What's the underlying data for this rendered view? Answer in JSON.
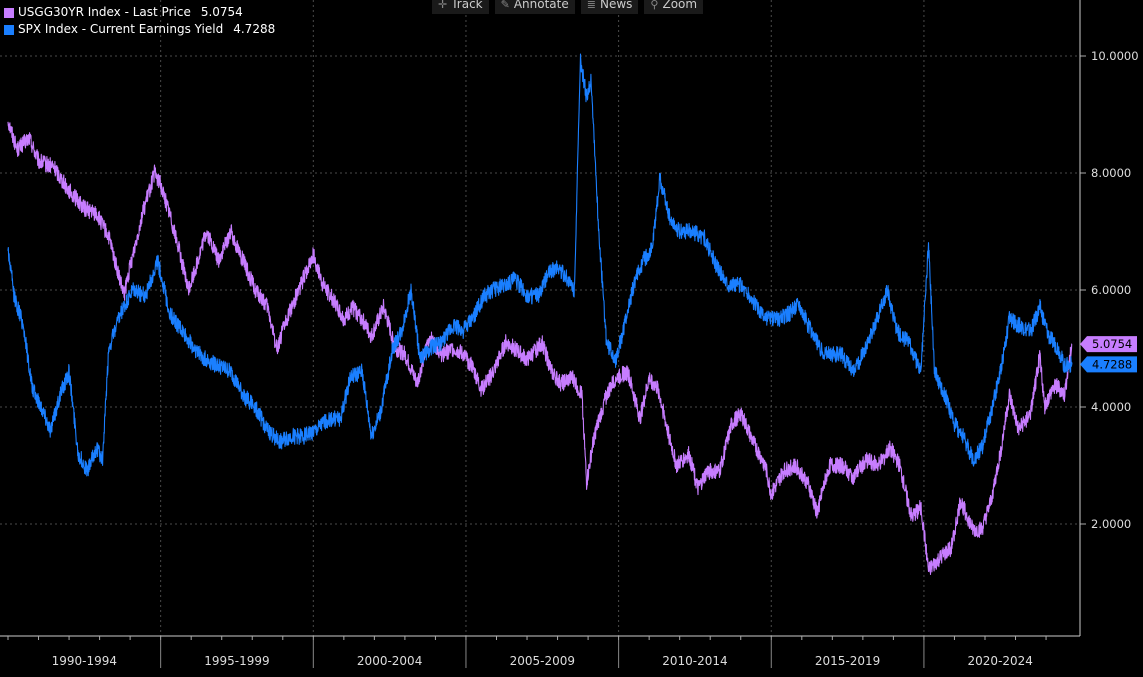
{
  "toolbar": {
    "items": [
      {
        "label": "Track",
        "icon": "crosshair-icon"
      },
      {
        "label": "Annotate",
        "icon": "pencil-icon"
      },
      {
        "label": "News",
        "icon": "news-icon"
      },
      {
        "label": "Zoom",
        "icon": "magnifier-icon"
      }
    ]
  },
  "legend": [
    {
      "label": "USGG30YR Index - Last Price",
      "value": "5.0754",
      "color": "#c77dff"
    },
    {
      "label": "SPX Index - Current Earnings Yield",
      "value": "4.7288",
      "color": "#1a7fff"
    }
  ],
  "chart_data": {
    "type": "line",
    "title": "",
    "xlabel": "",
    "ylabel": "",
    "ylim": [
      0,
      10.2
    ],
    "xlim": [
      1990.0,
      2024.85
    ],
    "y_ticks": [
      "2.0000",
      "4.0000",
      "6.0000",
      "8.0000",
      "10.0000"
    ],
    "x_categories": [
      "1990-1994",
      "1995-1999",
      "2000-2004",
      "2005-2009",
      "2010-2014",
      "2015-2019",
      "2020-2024"
    ],
    "grid": true,
    "legend_position": "top-left",
    "series": [
      {
        "name": "USGG30YR Index - Last Price",
        "color": "#c77dff",
        "last_value": "5.0754",
        "points": [
          [
            1990.0,
            8.9
          ],
          [
            1990.3,
            8.4
          ],
          [
            1990.7,
            8.6
          ],
          [
            1991.0,
            8.2
          ],
          [
            1991.5,
            8.1
          ],
          [
            1992.0,
            7.7
          ],
          [
            1992.5,
            7.4
          ],
          [
            1992.9,
            7.3
          ],
          [
            1993.3,
            6.9
          ],
          [
            1993.8,
            5.9
          ],
          [
            1994.0,
            6.4
          ],
          [
            1994.4,
            7.3
          ],
          [
            1994.8,
            8.0
          ],
          [
            1995.0,
            7.8
          ],
          [
            1995.3,
            7.3
          ],
          [
            1995.6,
            6.7
          ],
          [
            1995.9,
            6.0
          ],
          [
            1996.1,
            6.3
          ],
          [
            1996.5,
            7.0
          ],
          [
            1996.9,
            6.5
          ],
          [
            1997.3,
            7.0
          ],
          [
            1997.7,
            6.5
          ],
          [
            1998.1,
            6.0
          ],
          [
            1998.5,
            5.7
          ],
          [
            1998.8,
            5.0
          ],
          [
            1999.2,
            5.6
          ],
          [
            1999.6,
            6.1
          ],
          [
            2000.0,
            6.6
          ],
          [
            2000.3,
            6.1
          ],
          [
            2000.7,
            5.8
          ],
          [
            2001.0,
            5.5
          ],
          [
            2001.3,
            5.7
          ],
          [
            2001.6,
            5.5
          ],
          [
            2001.9,
            5.2
          ],
          [
            2002.3,
            5.7
          ],
          [
            2002.7,
            5.0
          ],
          [
            2003.0,
            4.9
          ],
          [
            2003.4,
            4.4
          ],
          [
            2003.8,
            5.2
          ],
          [
            2004.2,
            4.9
          ],
          [
            2004.6,
            5.0
          ],
          [
            2004.9,
            4.9
          ],
          [
            2005.2,
            4.7
          ],
          [
            2005.5,
            4.3
          ],
          [
            2005.9,
            4.6
          ],
          [
            2006.3,
            5.1
          ],
          [
            2006.6,
            5.0
          ],
          [
            2007.0,
            4.8
          ],
          [
            2007.5,
            5.1
          ],
          [
            2007.8,
            4.6
          ],
          [
            2008.1,
            4.4
          ],
          [
            2008.5,
            4.5
          ],
          [
            2008.8,
            4.2
          ],
          [
            2008.95,
            2.7
          ],
          [
            2009.2,
            3.5
          ],
          [
            2009.6,
            4.2
          ],
          [
            2009.9,
            4.5
          ],
          [
            2010.3,
            4.6
          ],
          [
            2010.7,
            3.8
          ],
          [
            2011.0,
            4.5
          ],
          [
            2011.3,
            4.3
          ],
          [
            2011.6,
            3.6
          ],
          [
            2011.9,
            3.0
          ],
          [
            2012.3,
            3.2
          ],
          [
            2012.6,
            2.6
          ],
          [
            2012.9,
            2.9
          ],
          [
            2013.3,
            2.9
          ],
          [
            2013.7,
            3.7
          ],
          [
            2014.0,
            3.9
          ],
          [
            2014.4,
            3.4
          ],
          [
            2014.8,
            3.0
          ],
          [
            2015.0,
            2.5
          ],
          [
            2015.4,
            2.9
          ],
          [
            2015.8,
            3.0
          ],
          [
            2016.2,
            2.7
          ],
          [
            2016.5,
            2.2
          ],
          [
            2016.9,
            3.0
          ],
          [
            2017.3,
            3.0
          ],
          [
            2017.7,
            2.8
          ],
          [
            2018.1,
            3.1
          ],
          [
            2018.5,
            3.0
          ],
          [
            2018.9,
            3.3
          ],
          [
            2019.2,
            3.0
          ],
          [
            2019.6,
            2.1
          ],
          [
            2019.9,
            2.3
          ],
          [
            2020.15,
            1.2
          ],
          [
            2020.5,
            1.4
          ],
          [
            2020.9,
            1.6
          ],
          [
            2021.2,
            2.4
          ],
          [
            2021.6,
            1.9
          ],
          [
            2021.9,
            1.9
          ],
          [
            2022.2,
            2.4
          ],
          [
            2022.5,
            3.2
          ],
          [
            2022.8,
            4.2
          ],
          [
            2023.1,
            3.6
          ],
          [
            2023.5,
            3.9
          ],
          [
            2023.8,
            4.9
          ],
          [
            2023.95,
            4.0
          ],
          [
            2024.3,
            4.4
          ],
          [
            2024.6,
            4.2
          ],
          [
            2024.85,
            5.0754
          ]
        ]
      },
      {
        "name": "SPX Index - Current Earnings Yield",
        "color": "#1a7fff",
        "last_value": "4.7288",
        "points": [
          [
            1990.0,
            6.7
          ],
          [
            1990.2,
            5.9
          ],
          [
            1990.5,
            5.4
          ],
          [
            1990.8,
            4.3
          ],
          [
            1991.1,
            4.0
          ],
          [
            1991.4,
            3.6
          ],
          [
            1991.7,
            4.2
          ],
          [
            1992.0,
            4.6
          ],
          [
            1992.3,
            3.2
          ],
          [
            1992.6,
            2.9
          ],
          [
            1992.9,
            3.3
          ],
          [
            1993.1,
            3.1
          ],
          [
            1993.3,
            5.0
          ],
          [
            1993.7,
            5.6
          ],
          [
            1994.1,
            6.0
          ],
          [
            1994.5,
            5.9
          ],
          [
            1994.9,
            6.5
          ],
          [
            1995.3,
            5.6
          ],
          [
            1995.7,
            5.3
          ],
          [
            1996.1,
            5.0
          ],
          [
            1996.5,
            4.8
          ],
          [
            1996.9,
            4.7
          ],
          [
            1997.3,
            4.6
          ],
          [
            1997.7,
            4.2
          ],
          [
            1998.1,
            4.0
          ],
          [
            1998.5,
            3.6
          ],
          [
            1998.9,
            3.4
          ],
          [
            1999.3,
            3.5
          ],
          [
            1999.7,
            3.5
          ],
          [
            2000.1,
            3.6
          ],
          [
            2000.5,
            3.8
          ],
          [
            2000.9,
            3.8
          ],
          [
            2001.2,
            4.5
          ],
          [
            2001.6,
            4.6
          ],
          [
            2001.9,
            3.5
          ],
          [
            2002.2,
            3.9
          ],
          [
            2002.6,
            5.0
          ],
          [
            2002.9,
            5.3
          ],
          [
            2003.2,
            6.0
          ],
          [
            2003.5,
            4.8
          ],
          [
            2003.8,
            5.0
          ],
          [
            2004.2,
            5.1
          ],
          [
            2004.6,
            5.4
          ],
          [
            2004.9,
            5.3
          ],
          [
            2005.2,
            5.5
          ],
          [
            2005.6,
            5.9
          ],
          [
            2005.9,
            6.0
          ],
          [
            2006.3,
            6.1
          ],
          [
            2006.6,
            6.2
          ],
          [
            2007.0,
            5.9
          ],
          [
            2007.4,
            5.9
          ],
          [
            2007.7,
            6.3
          ],
          [
            2008.0,
            6.4
          ],
          [
            2008.3,
            6.2
          ],
          [
            2008.55,
            6.0
          ],
          [
            2008.75,
            9.9
          ],
          [
            2008.95,
            9.3
          ],
          [
            2009.1,
            9.6
          ],
          [
            2009.35,
            7.0
          ],
          [
            2009.6,
            5.1
          ],
          [
            2009.9,
            4.8
          ],
          [
            2010.2,
            5.4
          ],
          [
            2010.5,
            6.1
          ],
          [
            2010.8,
            6.5
          ],
          [
            2011.1,
            6.7
          ],
          [
            2011.35,
            7.9
          ],
          [
            2011.7,
            7.2
          ],
          [
            2012.0,
            7.0
          ],
          [
            2012.4,
            7.0
          ],
          [
            2012.8,
            6.9
          ],
          [
            2013.2,
            6.4
          ],
          [
            2013.6,
            6.1
          ],
          [
            2014.0,
            6.1
          ],
          [
            2014.4,
            5.8
          ],
          [
            2014.8,
            5.5
          ],
          [
            2015.2,
            5.5
          ],
          [
            2015.6,
            5.6
          ],
          [
            2015.9,
            5.8
          ],
          [
            2016.2,
            5.4
          ],
          [
            2016.6,
            5.0
          ],
          [
            2016.9,
            4.9
          ],
          [
            2017.3,
            4.9
          ],
          [
            2017.7,
            4.6
          ],
          [
            2018.0,
            4.9
          ],
          [
            2018.4,
            5.4
          ],
          [
            2018.8,
            6.0
          ],
          [
            2019.1,
            5.3
          ],
          [
            2019.5,
            5.1
          ],
          [
            2019.9,
            4.6
          ],
          [
            2020.15,
            6.8
          ],
          [
            2020.35,
            4.6
          ],
          [
            2020.7,
            4.2
          ],
          [
            2021.0,
            3.7
          ],
          [
            2021.3,
            3.5
          ],
          [
            2021.6,
            3.1
          ],
          [
            2021.9,
            3.3
          ],
          [
            2022.2,
            3.9
          ],
          [
            2022.5,
            4.6
          ],
          [
            2022.8,
            5.5
          ],
          [
            2023.1,
            5.4
          ],
          [
            2023.5,
            5.3
          ],
          [
            2023.8,
            5.7
          ],
          [
            2024.1,
            5.2
          ],
          [
            2024.4,
            5.0
          ],
          [
            2024.6,
            4.7
          ],
          [
            2024.85,
            4.7288
          ]
        ]
      }
    ]
  }
}
